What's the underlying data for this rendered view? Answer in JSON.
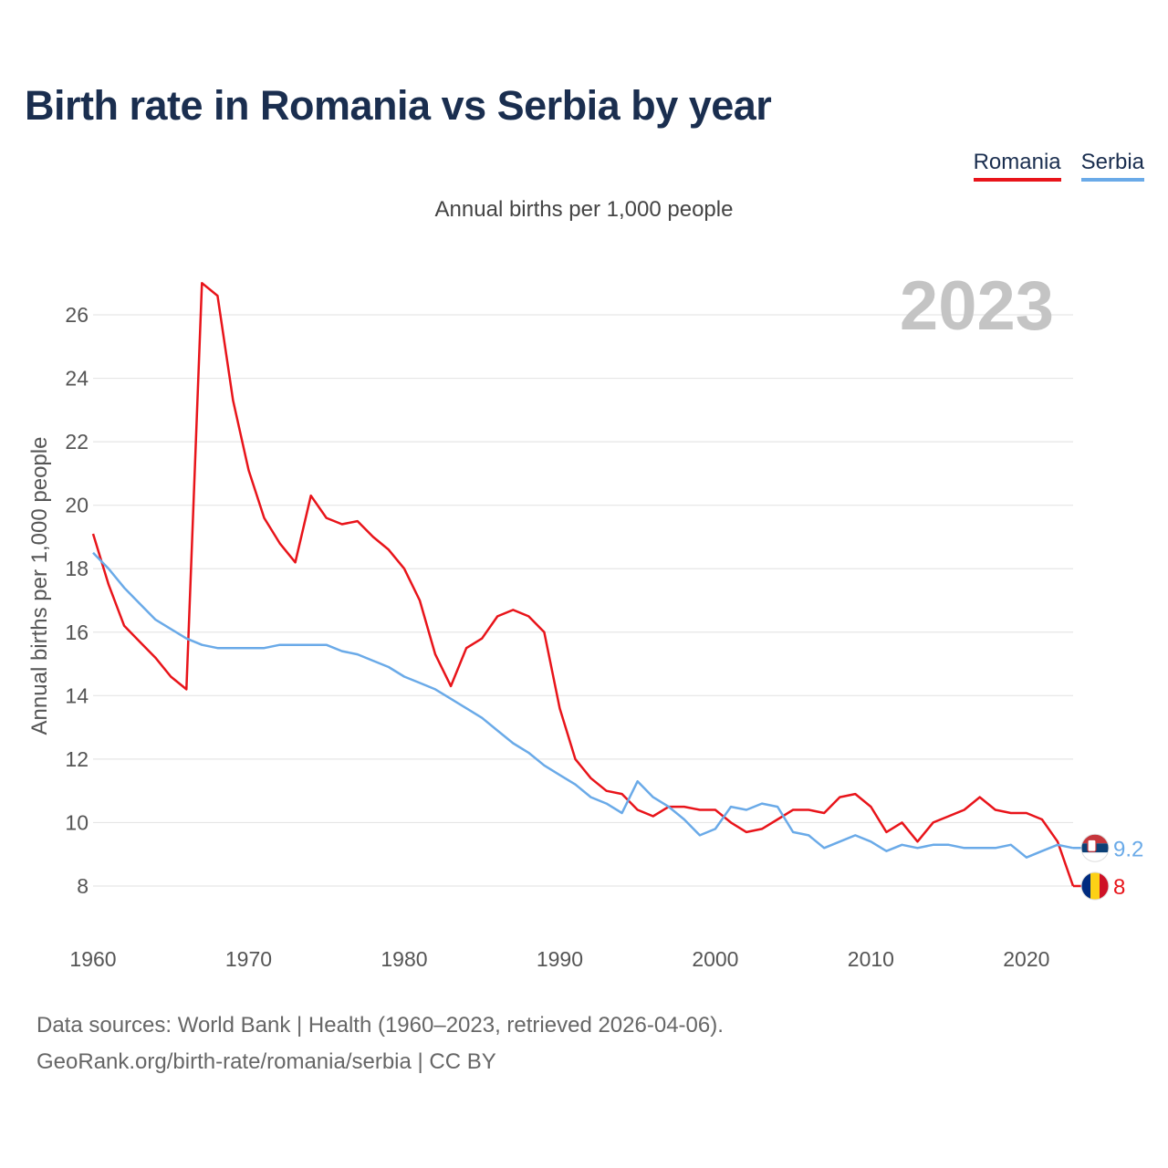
{
  "title": "Birth rate in Romania vs Serbia by year",
  "legend": [
    {
      "name": "Romania",
      "color": "#e8141a"
    },
    {
      "name": "Serbia",
      "color": "#6aaae8"
    }
  ],
  "year_label": "2023",
  "footer": {
    "line1": "Data sources: World Bank | Health (1960–2023, retrieved 2026-04-06).",
    "line2": "GeoRank.org/birth-rate/romania/serbia | CC BY"
  },
  "chart_data": {
    "type": "line",
    "title": "Annual births per 1,000 people",
    "xlabel": "",
    "ylabel": "Annual births per 1,000 people",
    "xlim": [
      1960,
      2023
    ],
    "ylim": [
      7,
      27
    ],
    "x_ticks": [
      1960,
      1970,
      1980,
      1990,
      2000,
      2010,
      2020
    ],
    "y_ticks": [
      8,
      10,
      12,
      14,
      16,
      18,
      20,
      22,
      24,
      26
    ],
    "x": [
      1960,
      1961,
      1962,
      1963,
      1964,
      1965,
      1966,
      1967,
      1968,
      1969,
      1970,
      1971,
      1972,
      1973,
      1974,
      1975,
      1976,
      1977,
      1978,
      1979,
      1980,
      1981,
      1982,
      1983,
      1984,
      1985,
      1986,
      1987,
      1988,
      1989,
      1990,
      1991,
      1992,
      1993,
      1994,
      1995,
      1996,
      1997,
      1998,
      1999,
      2000,
      2001,
      2002,
      2003,
      2004,
      2005,
      2006,
      2007,
      2008,
      2009,
      2010,
      2011,
      2012,
      2013,
      2014,
      2015,
      2016,
      2017,
      2018,
      2019,
      2020,
      2021,
      2022,
      2023
    ],
    "series": [
      {
        "name": "Romania",
        "color": "#e8141a",
        "end_label": "8",
        "values": [
          19.1,
          17.5,
          16.2,
          15.7,
          15.2,
          14.6,
          14.2,
          27.0,
          26.6,
          23.3,
          21.1,
          19.6,
          18.8,
          18.2,
          20.3,
          19.6,
          19.4,
          19.5,
          19.0,
          18.6,
          18.0,
          17.0,
          15.3,
          14.3,
          15.5,
          15.8,
          16.5,
          16.7,
          16.5,
          16.0,
          13.6,
          12.0,
          11.4,
          11.0,
          10.9,
          10.4,
          10.2,
          10.5,
          10.5,
          10.4,
          10.4,
          10.0,
          9.7,
          9.8,
          10.1,
          10.4,
          10.4,
          10.3,
          10.8,
          10.9,
          10.5,
          9.7,
          10.0,
          9.4,
          10.0,
          10.2,
          10.4,
          10.8,
          10.4,
          10.3,
          10.3,
          10.1,
          9.4,
          8.0
        ]
      },
      {
        "name": "Serbia",
        "color": "#6aaae8",
        "end_label": "9.2",
        "values": [
          18.5,
          18.0,
          17.4,
          16.9,
          16.4,
          16.1,
          15.8,
          15.6,
          15.5,
          15.5,
          15.5,
          15.5,
          15.6,
          15.6,
          15.6,
          15.6,
          15.4,
          15.3,
          15.1,
          14.9,
          14.6,
          14.4,
          14.2,
          13.9,
          13.6,
          13.3,
          12.9,
          12.5,
          12.2,
          11.8,
          11.5,
          11.2,
          10.8,
          10.6,
          10.3,
          11.3,
          10.8,
          10.5,
          10.1,
          9.6,
          9.8,
          10.5,
          10.4,
          10.6,
          10.5,
          9.7,
          9.6,
          9.2,
          9.4,
          9.6,
          9.4,
          9.1,
          9.3,
          9.2,
          9.3,
          9.3,
          9.2,
          9.2,
          9.2,
          9.3,
          8.9,
          9.1,
          9.3,
          9.2
        ]
      }
    ]
  }
}
